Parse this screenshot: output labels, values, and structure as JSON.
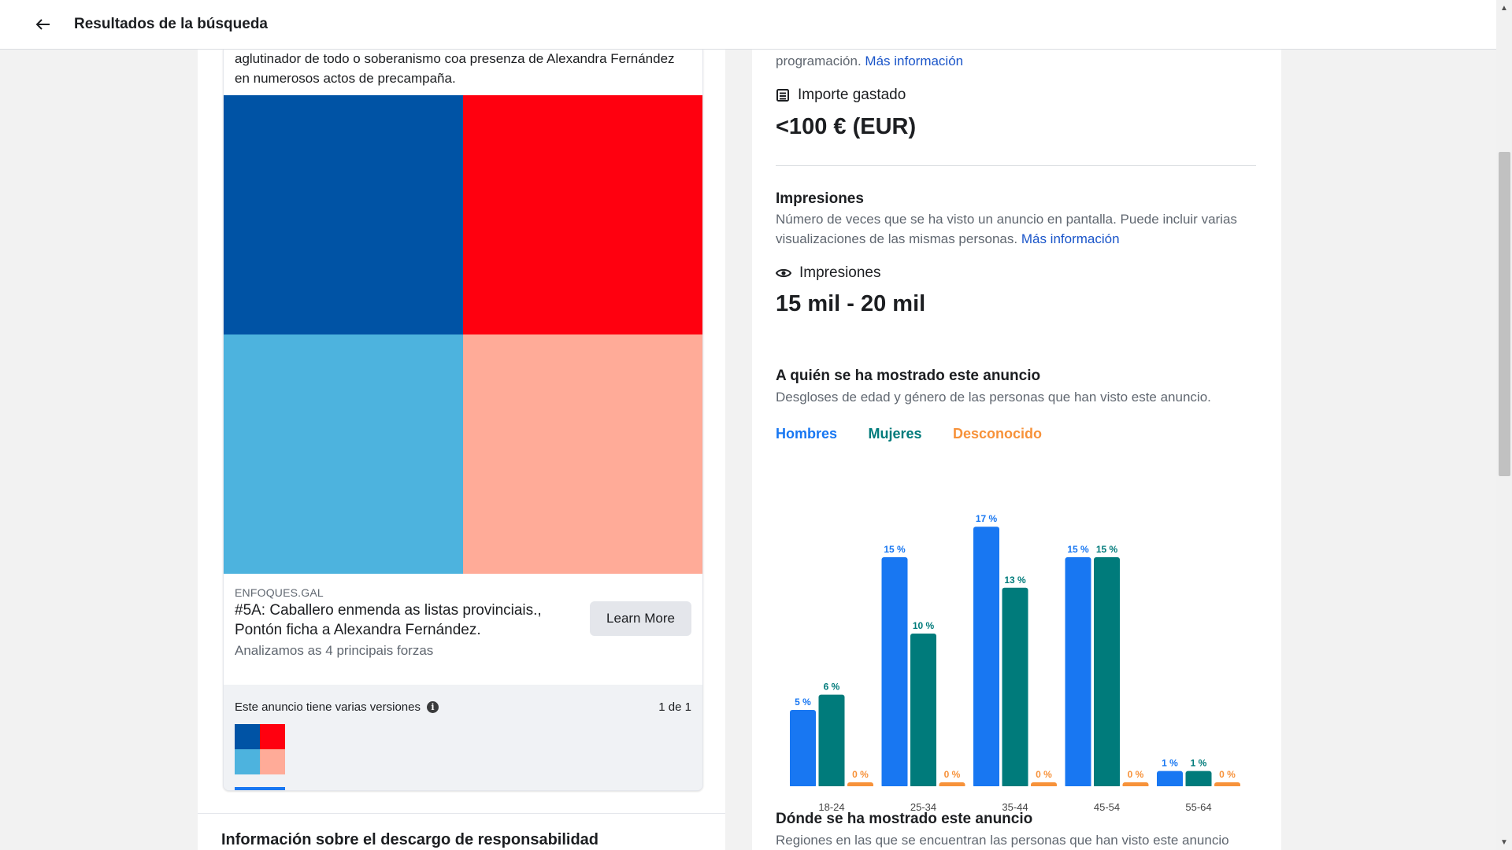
{
  "header": {
    "title": "Resultados de la búsqueda"
  },
  "ad": {
    "body_text": "aglutinador de todo o soberanismo coa presenza de Alexandra Fernández en numerosos actos de precampaña.",
    "image_colors": [
      "#0053a5",
      "#ff000f",
      "#4db3de",
      "#ffab98"
    ],
    "domain": "ENFOQUES.GAL",
    "headline": "#5A: Caballero enmenda as listas provinciais., Pontón ficha a Alexandra Fernández.",
    "description": "Analizamos as 4 principais forzas",
    "cta_label": "Learn More",
    "versions_label": "Este anuncio tiene varias versiones",
    "versions_count": "1 de 1"
  },
  "disclaimer": {
    "title": "Información sobre el descargo de responsabilidad"
  },
  "details": {
    "top_text": "programación.",
    "more_info": "Más información",
    "spent_label": "Importe gastado",
    "spent_value": "<100 € (EUR)",
    "impressions_title": "Impresiones",
    "impressions_desc": "Número de veces que se ha visto un anuncio en pantalla. Puede incluir varias visualizaciones de las mismas personas.",
    "impressions_label": "Impresiones",
    "impressions_value": "15 mil - 20 mil",
    "audience_title": "A quién se ha mostrado este anuncio",
    "audience_desc": "Desgloses de edad y género de las personas que han visto este anuncio.",
    "where_title": "Dónde se ha mostrado este anuncio",
    "where_desc": "Regiones en las que se encuentran las personas que han visto este anuncio"
  },
  "chart_data": {
    "type": "bar",
    "categories": [
      "18-24",
      "25-34",
      "35-44",
      "45-54",
      "55-64"
    ],
    "series": [
      {
        "name": "Hombres",
        "color": "#1877f2",
        "values": [
          5,
          15,
          17,
          15,
          1
        ]
      },
      {
        "name": "Mujeres",
        "color": "#007b7b",
        "values": [
          6,
          10,
          13,
          15,
          1
        ]
      },
      {
        "name": "Desconocido",
        "color": "#f7923a",
        "values": [
          0,
          0,
          0,
          0,
          0
        ]
      }
    ],
    "value_suffix": " %",
    "legend_position": "top-left",
    "grid": false
  }
}
